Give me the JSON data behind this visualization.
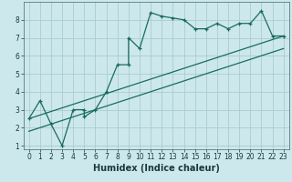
{
  "xlabel": "Humidex (Indice chaleur)",
  "ylabel": "",
  "bg_color": "#cce8ec",
  "grid_color": "#aaccd0",
  "line_color": "#1a6b5e",
  "line1_x": [
    0,
    1,
    2,
    3,
    4,
    5,
    5,
    6,
    7,
    8,
    9,
    9,
    10,
    11,
    12,
    13,
    14,
    15,
    16,
    17,
    18,
    19,
    20,
    21,
    22,
    23
  ],
  "line1_y": [
    2.5,
    3.5,
    2.2,
    1.0,
    3.0,
    3.0,
    2.6,
    3.0,
    4.0,
    5.5,
    5.5,
    7.0,
    6.4,
    8.4,
    8.2,
    8.1,
    8.0,
    7.5,
    7.5,
    7.8,
    7.5,
    7.8,
    7.8,
    8.5,
    7.1,
    7.1
  ],
  "line2_x": [
    0,
    23
  ],
  "line2_y": [
    2.5,
    7.1
  ],
  "line3_x": [
    0,
    23
  ],
  "line3_y": [
    1.8,
    6.4
  ],
  "xlim": [
    -0.5,
    23.5
  ],
  "ylim": [
    0.8,
    9.0
  ],
  "xticks": [
    0,
    1,
    2,
    3,
    4,
    5,
    6,
    7,
    8,
    9,
    10,
    11,
    12,
    13,
    14,
    15,
    16,
    17,
    18,
    19,
    20,
    21,
    22,
    23
  ],
  "yticks": [
    1,
    2,
    3,
    4,
    5,
    6,
    7,
    8
  ],
  "tick_fontsize": 5.5,
  "xlabel_fontsize": 7
}
